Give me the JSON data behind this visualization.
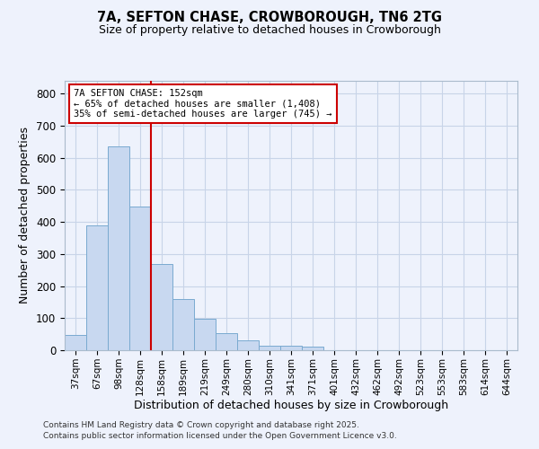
{
  "title_line1": "7A, SEFTON CHASE, CROWBOROUGH, TN6 2TG",
  "title_line2": "Size of property relative to detached houses in Crowborough",
  "xlabel": "Distribution of detached houses by size in Crowborough",
  "ylabel": "Number of detached properties",
  "categories": [
    "37sqm",
    "67sqm",
    "98sqm",
    "128sqm",
    "158sqm",
    "189sqm",
    "219sqm",
    "249sqm",
    "280sqm",
    "310sqm",
    "341sqm",
    "371sqm",
    "401sqm",
    "432sqm",
    "462sqm",
    "492sqm",
    "523sqm",
    "553sqm",
    "583sqm",
    "614sqm",
    "644sqm"
  ],
  "values": [
    47,
    390,
    635,
    447,
    270,
    160,
    98,
    52,
    30,
    13,
    13,
    10,
    0,
    0,
    0,
    0,
    0,
    0,
    0,
    0,
    0
  ],
  "bar_color": "#c8d8f0",
  "bar_edge_color": "#7aaad0",
  "vline_x_index": 4,
  "vline_color": "#cc0000",
  "annotation_text": "7A SEFTON CHASE: 152sqm\n← 65% of detached houses are smaller (1,408)\n35% of semi-detached houses are larger (745) →",
  "annotation_box_facecolor": "white",
  "annotation_box_edgecolor": "#cc0000",
  "ylim": [
    0,
    840
  ],
  "yticks": [
    0,
    100,
    200,
    300,
    400,
    500,
    600,
    700,
    800
  ],
  "grid_color": "#c8d4e8",
  "background_color": "#eef2fc",
  "plot_bg_color": "#eef2fc",
  "footnote_line1": "Contains HM Land Registry data © Crown copyright and database right 2025.",
  "footnote_line2": "Contains public sector information licensed under the Open Government Licence v3.0."
}
